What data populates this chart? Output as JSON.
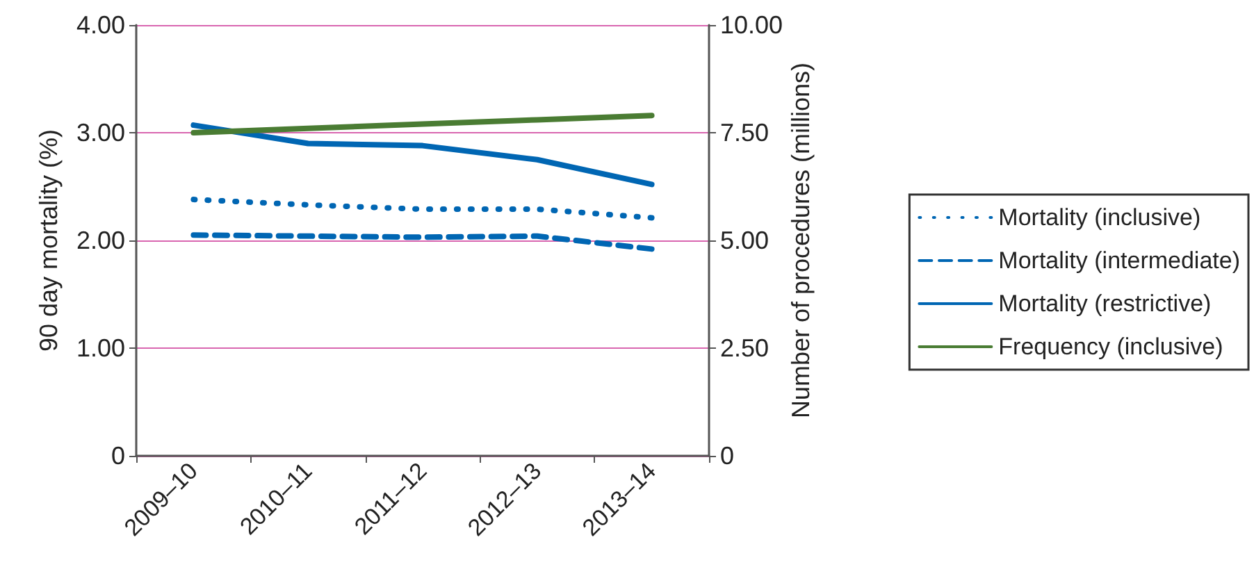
{
  "chart_data": {
    "type": "line",
    "ylabel": "90 day mortality (%)",
    "y2label": "Number of procedures (millions)",
    "categories": [
      "2009–10",
      "2010–11",
      "2011–12",
      "2012–13",
      "2013–14"
    ],
    "series": [
      {
        "name": "Mortality (inclusive)",
        "color": "#0066b3",
        "line_style": "dotted",
        "values": [
          2.38,
          2.33,
          2.29,
          2.29,
          2.21
        ]
      },
      {
        "name": "Mortality (intermediate)",
        "color": "#0066b3",
        "line_style": "dashed",
        "values": [
          2.05,
          2.04,
          2.03,
          2.04,
          1.92
        ]
      },
      {
        "name": "Mortality (restrictive)",
        "color": "#0066b3",
        "line_style": "solid",
        "values": [
          3.07,
          2.9,
          2.88,
          2.75,
          2.52
        ]
      },
      {
        "name": "Frequency (inclusive)",
        "color": "#4a7c33",
        "line_style": "solid",
        "axis": "y2",
        "values": [
          7.5,
          7.6,
          7.7,
          7.8,
          7.9
        ]
      }
    ],
    "ylim": [
      0,
      4
    ],
    "yticks": [
      {
        "value": 0,
        "label": "0"
      },
      {
        "value": 1,
        "label": "1.00"
      },
      {
        "value": 2,
        "label": "2.00"
      },
      {
        "value": 3,
        "label": "3.00"
      },
      {
        "value": 4,
        "label": "4.00"
      }
    ],
    "y2lim": [
      0,
      10
    ],
    "y2ticks": [
      {
        "value": 0,
        "label": "0"
      },
      {
        "value": 2.5,
        "label": "2.50"
      },
      {
        "value": 5,
        "label": "5.00"
      },
      {
        "value": 7.5,
        "label": "7.50"
      },
      {
        "value": 10,
        "label": "10.00"
      }
    ],
    "grid": "y",
    "legend": "right",
    "marker": "none"
  }
}
